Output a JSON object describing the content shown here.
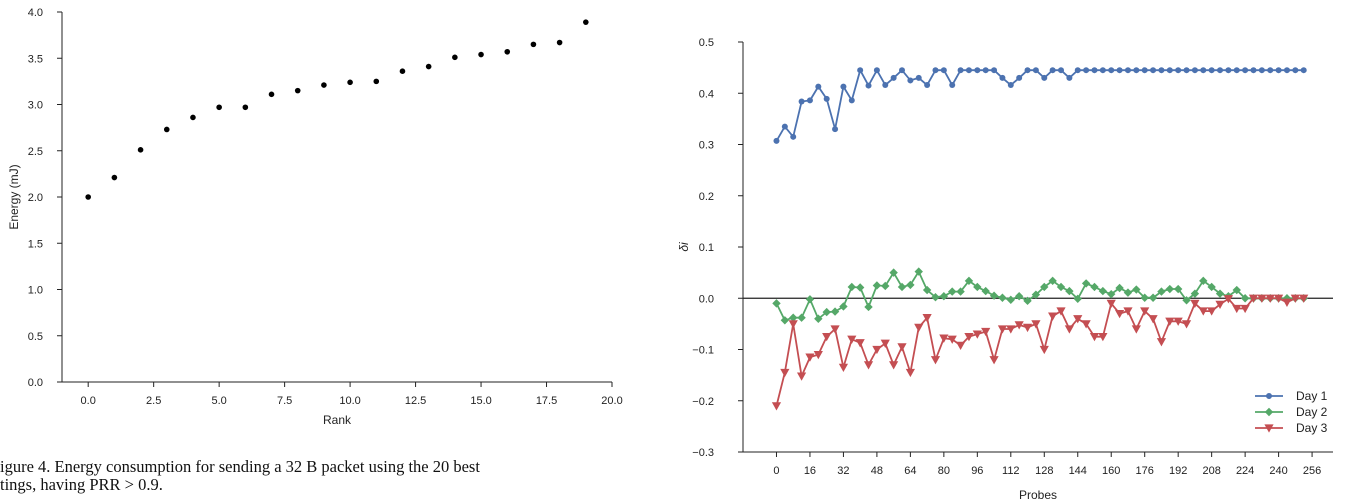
{
  "caption": "igure 4.  Energy consumption for sending a 32 B packet using the 20 best\ntings, having PRR > 0.9.",
  "chart_data": [
    {
      "type": "scatter",
      "xlabel": "Rank",
      "ylabel": "Energy (mJ)",
      "xlim": [
        -1,
        20
      ],
      "ylim": [
        0,
        4
      ],
      "xticks": [
        0,
        2.5,
        5,
        7.5,
        10,
        12.5,
        15,
        17.5,
        20
      ],
      "xtick_labels": [
        "0.0",
        "2.5",
        "5.0",
        "7.5",
        "10.0",
        "12.5",
        "15.0",
        "17.5",
        "20.0"
      ],
      "yticks": [
        0,
        0.5,
        1,
        1.5,
        2,
        2.5,
        3,
        3.5,
        4
      ],
      "ytick_labels": [
        "0.0",
        "0.5",
        "1.0",
        "1.5",
        "2.0",
        "2.5",
        "3.0",
        "3.5",
        "4.0"
      ],
      "x": [
        0,
        1,
        2,
        3,
        4,
        5,
        6,
        7,
        8,
        9,
        10,
        11,
        12,
        13,
        14,
        15,
        16,
        17,
        18,
        19
      ],
      "y": [
        2.0,
        2.21,
        2.51,
        2.73,
        2.86,
        2.97,
        2.97,
        3.11,
        3.15,
        3.21,
        3.24,
        3.25,
        3.36,
        3.41,
        3.51,
        3.54,
        3.57,
        3.65,
        3.67,
        3.89
      ],
      "color": "#000000",
      "grid": false
    },
    {
      "type": "line",
      "xlabel": "Probes",
      "ylabel": "δi",
      "xlim": [
        -16,
        266
      ],
      "ylim": [
        -0.3,
        0.5
      ],
      "xticks": [
        0,
        16,
        32,
        48,
        64,
        80,
        96,
        112,
        128,
        144,
        160,
        176,
        192,
        208,
        224,
        240,
        256
      ],
      "xtick_labels": [
        "0",
        "16",
        "32",
        "48",
        "64",
        "80",
        "96",
        "112",
        "128",
        "144",
        "160",
        "176",
        "192",
        "208",
        "224",
        "240",
        "256"
      ],
      "yticks": [
        -0.3,
        -0.2,
        -0.1,
        0.0,
        0.1,
        0.2,
        0.3,
        0.4,
        0.5
      ],
      "ytick_labels": [
        "−0.3",
        "−0.2",
        "−0.1",
        "0.0",
        "0.1",
        "0.2",
        "0.3",
        "0.4",
        "0.5"
      ],
      "hline": 0,
      "grid": false,
      "legend": "bottom-right",
      "x_step": 4,
      "series": [
        {
          "name": "Day 1",
          "color": "#4c72b0",
          "marker": "circle",
          "values": [
            0.307,
            0.335,
            0.315,
            0.384,
            0.386,
            0.413,
            0.389,
            0.33,
            0.413,
            0.386,
            0.445,
            0.415,
            0.445,
            0.416,
            0.43,
            0.445,
            0.425,
            0.43,
            0.416,
            0.445,
            0.445,
            0.416,
            0.445,
            0.445,
            0.445,
            0.445,
            0.445,
            0.43,
            0.416,
            0.43,
            0.445,
            0.445,
            0.43,
            0.445,
            0.445,
            0.43,
            0.445,
            0.445,
            0.445,
            0.445,
            0.445,
            0.445,
            0.445,
            0.445,
            0.445,
            0.445,
            0.445,
            0.445,
            0.445,
            0.445,
            0.445,
            0.445,
            0.445,
            0.445,
            0.445,
            0.445,
            0.445,
            0.445,
            0.445,
            0.445,
            0.445,
            0.445,
            0.445,
            0.445
          ]
        },
        {
          "name": "Day 2",
          "color": "#55a868",
          "marker": "diamond",
          "values": [
            -0.01,
            -0.043,
            -0.038,
            -0.038,
            -0.002,
            -0.04,
            -0.027,
            -0.026,
            -0.016,
            0.022,
            0.021,
            -0.017,
            0.025,
            0.024,
            0.05,
            0.022,
            0.026,
            0.052,
            0.016,
            0.002,
            0.004,
            0.013,
            0.013,
            0.034,
            0.022,
            0.014,
            0.005,
            0.001,
            -0.003,
            0.004,
            -0.005,
            0.007,
            0.022,
            0.034,
            0.022,
            0.014,
            -0.001,
            0.029,
            0.022,
            0.014,
            0.008,
            0.02,
            0.011,
            0.017,
            0.001,
            0.001,
            0.013,
            0.018,
            0.018,
            -0.004,
            0.009,
            0.034,
            0.022,
            0.009,
            0.004,
            0.016,
            0.0,
            0.0,
            0.0,
            0.0,
            0.0,
            0.0,
            0.0,
            0.0
          ]
        },
        {
          "name": "Day 3",
          "color": "#c44e52",
          "marker": "triangle-down",
          "values": [
            -0.21,
            -0.145,
            -0.05,
            -0.152,
            -0.115,
            -0.11,
            -0.075,
            -0.06,
            -0.135,
            -0.08,
            -0.087,
            -0.13,
            -0.1,
            -0.088,
            -0.13,
            -0.095,
            -0.145,
            -0.057,
            -0.038,
            -0.12,
            -0.078,
            -0.08,
            -0.092,
            -0.075,
            -0.07,
            -0.065,
            -0.12,
            -0.06,
            -0.06,
            -0.052,
            -0.057,
            -0.05,
            -0.1,
            -0.035,
            -0.025,
            -0.06,
            -0.04,
            -0.05,
            -0.075,
            -0.075,
            -0.01,
            -0.03,
            -0.025,
            -0.06,
            -0.025,
            -0.04,
            -0.085,
            -0.045,
            -0.045,
            -0.05,
            -0.01,
            -0.025,
            -0.025,
            -0.012,
            -0.001,
            -0.02,
            -0.02,
            0.0,
            0.0,
            0.0,
            0.0,
            -0.008,
            0.0,
            0.0
          ]
        }
      ]
    }
  ]
}
